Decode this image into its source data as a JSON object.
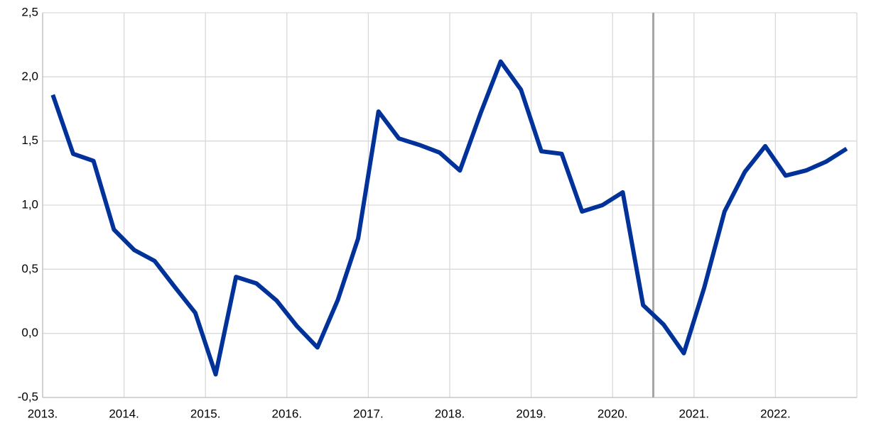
{
  "chart_data": {
    "type": "line",
    "categories": [
      "2013.",
      null,
      null,
      null,
      "2014.",
      null,
      null,
      null,
      "2015.",
      null,
      null,
      null,
      "2016.",
      null,
      null,
      null,
      "2017.",
      null,
      null,
      null,
      "2018.",
      null,
      null,
      null,
      "2019.",
      null,
      null,
      null,
      "2020.",
      null,
      null,
      null,
      "2021.",
      null,
      null,
      null,
      "2022.",
      null,
      null,
      null
    ],
    "series": [
      {
        "color": "#003299",
        "values": [
          1.86,
          1.4,
          1.345,
          0.81,
          0.65,
          0.565,
          0.36,
          0.16,
          -0.32,
          0.44,
          0.39,
          0.255,
          0.055,
          -0.11,
          0.26,
          0.74,
          1.73,
          1.52,
          1.47,
          1.41,
          1.27,
          1.71,
          2.12,
          1.9,
          1.42,
          1.4,
          0.95,
          1.0,
          1.1,
          0.22,
          0.07,
          -0.155,
          0.355,
          0.95,
          1.26,
          1.46,
          1.23,
          1.27,
          1.34,
          1.44
        ]
      }
    ],
    "ylim": [
      -0.5,
      2.5
    ],
    "yticks": [
      {
        "value": -0.5,
        "label": "-0,5"
      },
      {
        "value": 0,
        "label": "0,0"
      },
      {
        "value": 0.5,
        "label": "0,5"
      },
      {
        "value": 1,
        "label": "1,0"
      },
      {
        "value": 1.5,
        "label": "1,5"
      },
      {
        "value": 2,
        "label": "2,0"
      },
      {
        "value": 2.5,
        "label": "2,5"
      }
    ],
    "grid": true
  }
}
